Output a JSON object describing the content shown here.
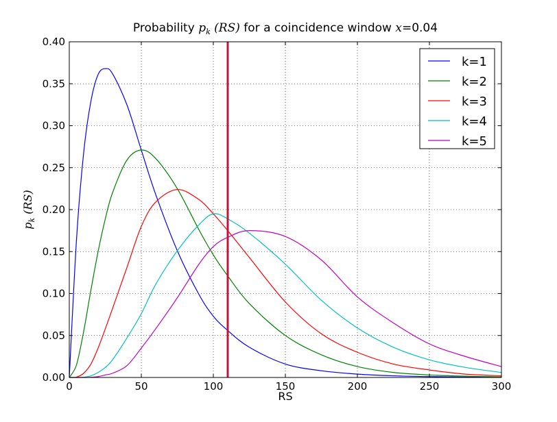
{
  "chart_data": {
    "type": "line",
    "title": {
      "prefix": "Probability ",
      "math_p": "p",
      "math_k": "k",
      "math_rs": "(RS)",
      "middle": " for a coincidence window ",
      "math_x": "x",
      "suffix": "=0.04"
    },
    "xlabel": "RS",
    "ylabel": {
      "p": "p",
      "k": "k",
      "rs": "(RS)"
    },
    "xlim": [
      0,
      300
    ],
    "ylim": [
      0.0,
      0.4
    ],
    "xticks": [
      0,
      50,
      100,
      150,
      200,
      250,
      300
    ],
    "xtick_labels": [
      "0",
      "50",
      "100",
      "150",
      "200",
      "250",
      "300"
    ],
    "yticks": [
      0.0,
      0.05,
      0.1,
      0.15,
      0.2,
      0.25,
      0.3,
      0.35,
      0.4
    ],
    "ytick_labels": [
      "0.00",
      "0.05",
      "0.10",
      "0.15",
      "0.20",
      "0.25",
      "0.30",
      "0.35",
      "0.40"
    ],
    "grid": true,
    "grid_style": "dotted",
    "legend_position": "top-right",
    "vertical_marker": {
      "x": 110,
      "color": "#c0143c"
    },
    "x": [
      0,
      5,
      10,
      15,
      20,
      25,
      30,
      40,
      50,
      60,
      75,
      90,
      100,
      110,
      125,
      150,
      175,
      200,
      225,
      250,
      275,
      300
    ],
    "series": [
      {
        "name": "k=1",
        "color": "#0000ff",
        "values": [
          0.0,
          0.164,
          0.268,
          0.329,
          0.361,
          0.368,
          0.362,
          0.325,
          0.271,
          0.218,
          0.151,
          0.099,
          0.073,
          0.056,
          0.036,
          0.016,
          0.008,
          0.004,
          0.002,
          0.001,
          0.0005,
          0.0002
        ]
      },
      {
        "name": "k=2",
        "color": "#008000",
        "values": [
          0.0,
          0.015,
          0.055,
          0.104,
          0.15,
          0.189,
          0.22,
          0.259,
          0.271,
          0.261,
          0.225,
          0.176,
          0.146,
          0.121,
          0.088,
          0.05,
          0.027,
          0.013,
          0.006,
          0.003,
          0.0015,
          0.0007
        ]
      },
      {
        "name": "k=3",
        "color": "#ff0000",
        "values": [
          0.0,
          0.0005,
          0.005,
          0.016,
          0.035,
          0.058,
          0.082,
          0.131,
          0.18,
          0.209,
          0.224,
          0.212,
          0.195,
          0.175,
          0.143,
          0.09,
          0.052,
          0.03,
          0.016,
          0.009,
          0.004,
          0.002
        ]
      },
      {
        "name": "k=4",
        "color": "#00bfbf",
        "values": [
          0.0,
          0.0,
          0.0003,
          0.002,
          0.006,
          0.012,
          0.021,
          0.047,
          0.076,
          0.111,
          0.151,
          0.182,
          0.195,
          0.189,
          0.172,
          0.135,
          0.092,
          0.059,
          0.036,
          0.021,
          0.012,
          0.006
        ]
      },
      {
        "name": "k=5",
        "color": "#bf00bf",
        "values": [
          0.0,
          0.0,
          0.0,
          0.0002,
          0.001,
          0.003,
          0.005,
          0.014,
          0.035,
          0.058,
          0.095,
          0.135,
          0.156,
          0.167,
          0.175,
          0.168,
          0.14,
          0.096,
          0.065,
          0.04,
          0.025,
          0.013
        ]
      }
    ]
  }
}
